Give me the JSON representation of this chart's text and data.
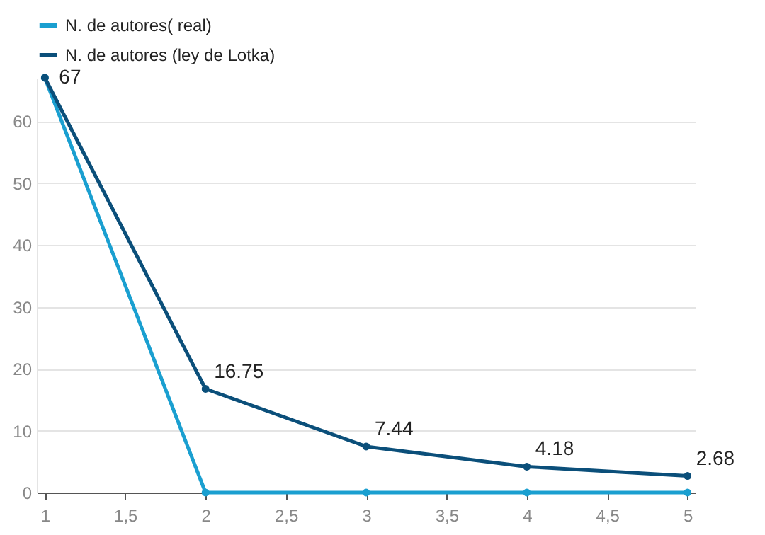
{
  "chart_data": {
    "type": "line",
    "x": [
      1,
      2,
      3,
      4,
      5
    ],
    "xlim": [
      0.95,
      5.05
    ],
    "xticks": [
      1,
      {
        "value": 1.5,
        "label": "1,5"
      },
      2,
      {
        "value": 2.5,
        "label": "2,5"
      },
      3,
      {
        "value": 3.5,
        "label": "3,5"
      },
      4,
      {
        "value": 4.5,
        "label": "4,5"
      },
      5
    ],
    "ylim": [
      0,
      67
    ],
    "yticks": [
      0,
      10,
      20,
      30,
      40,
      50,
      60
    ],
    "series": [
      {
        "name": "N. de autores( real)",
        "color": "#1a9fd0",
        "values": [
          67,
          0,
          0,
          0,
          0
        ]
      },
      {
        "name": "N. de autores (ley de Lotka)",
        "color": "#0b4f7a",
        "values": [
          67,
          16.75,
          7.44,
          4.18,
          2.68
        ],
        "value_labels": [
          "67",
          "16.75",
          "7.44",
          "4.18",
          "2.68"
        ]
      }
    ],
    "grid": "y",
    "legend": "top left",
    "marker": "circle"
  }
}
